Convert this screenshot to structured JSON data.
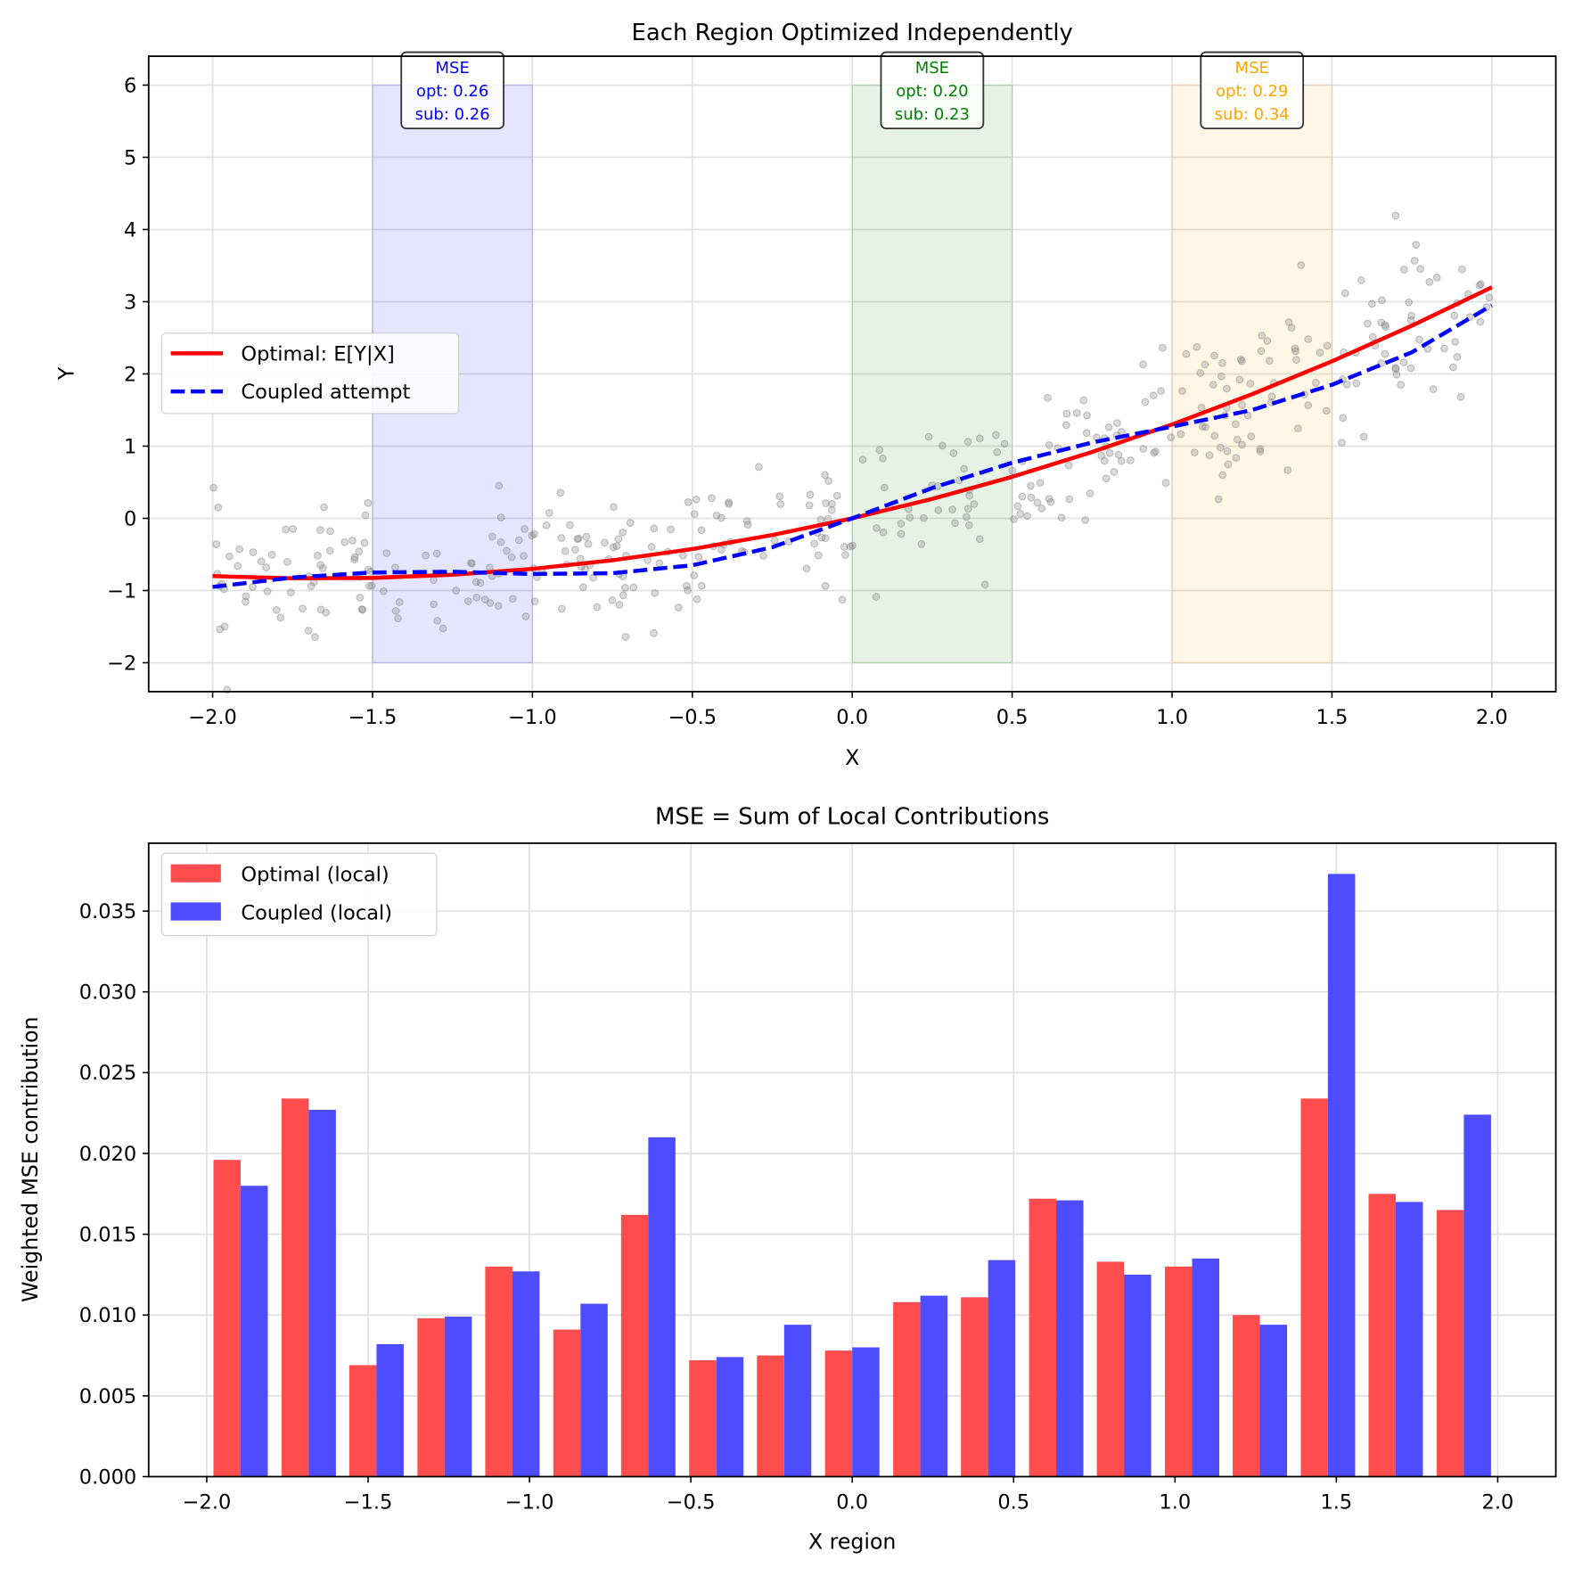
{
  "chart_data": [
    {
      "type": "line",
      "title": "Each Region Optimized Independently",
      "xlabel": "X",
      "ylabel": "Y",
      "xlim": [
        -2.2,
        2.2
      ],
      "ylim": [
        -2.4,
        6.4
      ],
      "xticks": [
        "−2.0",
        "−1.5",
        "−1.0",
        "−0.5",
        "0.0",
        "0.5",
        "1.0",
        "1.5",
        "2.0"
      ],
      "xtick_values": [
        -2,
        -1.5,
        -1,
        -0.5,
        0,
        0.5,
        1,
        1.5,
        2
      ],
      "yticks": [
        "−2",
        "−1",
        "0",
        "1",
        "2",
        "3",
        "4",
        "5",
        "6"
      ],
      "ytick_values": [
        -2,
        -1,
        0,
        1,
        2,
        3,
        4,
        5,
        6
      ],
      "grid": true,
      "legend_position": "center-left",
      "series": [
        {
          "name": "Optimal: E[Y|X]",
          "color": "#ff0000",
          "style": "solid",
          "x": [
            -2,
            -1.75,
            -1.5,
            -1.25,
            -1,
            -0.75,
            -0.5,
            -0.25,
            0,
            0.25,
            0.5,
            0.75,
            1,
            1.25,
            1.5,
            1.75,
            2
          ],
          "y": [
            -0.8,
            -0.831,
            -0.825,
            -0.781,
            -0.7,
            -0.581,
            -0.425,
            -0.231,
            0,
            0.269,
            0.575,
            0.919,
            1.3,
            1.719,
            2.175,
            2.669,
            3.2
          ]
        },
        {
          "name": "Coupled attempt",
          "color": "#0000ff",
          "style": "dashed",
          "x": [
            -2,
            -1.75,
            -1.5,
            -1.25,
            -1,
            -0.75,
            -0.5,
            -0.25,
            0,
            0.25,
            0.5,
            0.75,
            1,
            1.25,
            1.5,
            1.75,
            2
          ],
          "y": [
            -0.95,
            -0.82,
            -0.75,
            -0.74,
            -0.77,
            -0.76,
            -0.65,
            -0.4,
            0,
            0.42,
            0.77,
            1.05,
            1.27,
            1.5,
            1.85,
            2.3,
            2.95
          ]
        }
      ],
      "scatter": {
        "name": "samples",
        "color": "#808080",
        "n": 400,
        "x_range": [
          -2,
          2
        ],
        "noise_sd": 0.45
      },
      "regions": [
        {
          "x": [
            -1.5,
            -1.0
          ],
          "y": [
            -2,
            6
          ],
          "color": "#0000ff",
          "label": "MSE",
          "opt": "opt: 0.26",
          "sub": "sub: 0.26",
          "text_color": "#0000ff"
        },
        {
          "x": [
            0.0,
            0.5
          ],
          "y": [
            -2,
            6
          ],
          "color": "#008000",
          "label": "MSE",
          "opt": "opt: 0.20",
          "sub": "sub: 0.23",
          "text_color": "#008000"
        },
        {
          "x": [
            1.0,
            1.5
          ],
          "y": [
            -2,
            6
          ],
          "color": "#ffa500",
          "label": "MSE",
          "opt": "opt: 0.29",
          "sub": "sub: 0.34",
          "text_color": "#ffa500"
        }
      ]
    },
    {
      "type": "bar",
      "title": "MSE = Sum of Local Contributions",
      "xlabel": "X region",
      "ylabel": "Weighted MSE contribution",
      "xlim": [
        -2.18,
        2.18
      ],
      "ylim": [
        0,
        0.0392
      ],
      "xticks": [
        "−2.0",
        "−1.5",
        "−1.0",
        "−0.5",
        "0.0",
        "0.5",
        "1.0",
        "1.5",
        "2.0"
      ],
      "xtick_values": [
        -2,
        -1.5,
        -1,
        -0.5,
        0,
        0.5,
        1,
        1.5,
        2
      ],
      "yticks": [
        "0.000",
        "0.005",
        "0.010",
        "0.015",
        "0.020",
        "0.025",
        "0.030",
        "0.035"
      ],
      "ytick_values": [
        0,
        0.005,
        0.01,
        0.015,
        0.02,
        0.025,
        0.03,
        0.035
      ],
      "grid": true,
      "legend_position": "top-left",
      "bin_centers": [
        -1.895,
        -1.684,
        -1.474,
        -1.263,
        -1.053,
        -0.842,
        -0.632,
        -0.421,
        -0.211,
        0.0,
        0.211,
        0.421,
        0.632,
        0.842,
        1.053,
        1.263,
        1.474,
        1.684,
        1.895
      ],
      "series": [
        {
          "name": "Optimal (local)",
          "color": "#ff4d4d",
          "values": [
            0.0196,
            0.0234,
            0.0069,
            0.0098,
            0.013,
            0.0091,
            0.0162,
            0.0072,
            0.0075,
            0.0078,
            0.0108,
            0.0111,
            0.0172,
            0.0133,
            0.013,
            0.01,
            0.0234,
            0.0175,
            0.0165
          ]
        },
        {
          "name": "Coupled (local)",
          "color": "#4d4dff",
          "values": [
            0.018,
            0.0227,
            0.0082,
            0.0099,
            0.0127,
            0.0107,
            0.021,
            0.0074,
            0.0094,
            0.008,
            0.0112,
            0.0134,
            0.0171,
            0.0125,
            0.0135,
            0.0094,
            0.0373,
            0.017,
            0.0224
          ]
        }
      ]
    }
  ]
}
